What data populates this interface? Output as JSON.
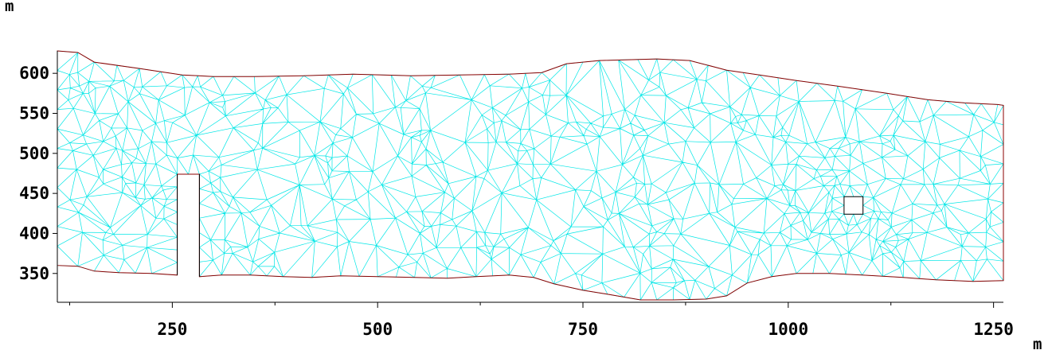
{
  "chart_data": {
    "type": "mesh",
    "x_unit": "m",
    "y_unit": "m",
    "xlim": [
      110,
      1262
    ],
    "ylim": [
      314,
      628
    ],
    "x_ticks": [
      250,
      500,
      750,
      1000,
      1250
    ],
    "x_tick_labels": [
      "250",
      "500",
      "750",
      "1000",
      "1250"
    ],
    "x_minor_ticks": [
      125,
      375,
      625,
      875,
      1125
    ],
    "y_ticks": [
      350,
      400,
      450,
      500,
      550,
      600
    ],
    "y_tick_labels": [
      "350",
      "400",
      "450",
      "500",
      "550",
      "600"
    ],
    "mesh_spacing": 25,
    "outer_boundary": [
      [
        110,
        628
      ],
      [
        135,
        626
      ],
      [
        155,
        614
      ],
      [
        210,
        606
      ],
      [
        262,
        598
      ],
      [
        300,
        596
      ],
      [
        350,
        596
      ],
      [
        410,
        597
      ],
      [
        470,
        599
      ],
      [
        540,
        597
      ],
      [
        600,
        598
      ],
      [
        660,
        599
      ],
      [
        700,
        601
      ],
      [
        730,
        612
      ],
      [
        770,
        616
      ],
      [
        840,
        618
      ],
      [
        880,
        616
      ],
      [
        925,
        604
      ],
      [
        965,
        598
      ],
      [
        1010,
        591
      ],
      [
        1060,
        584
      ],
      [
        1120,
        575
      ],
      [
        1170,
        567
      ],
      [
        1215,
        563
      ],
      [
        1255,
        561
      ],
      [
        1262,
        560
      ],
      [
        1262,
        341
      ],
      [
        1225,
        340
      ],
      [
        1180,
        342
      ],
      [
        1140,
        345
      ],
      [
        1090,
        348
      ],
      [
        1050,
        350
      ],
      [
        1010,
        350
      ],
      [
        980,
        346
      ],
      [
        950,
        338
      ],
      [
        925,
        322
      ],
      [
        900,
        318
      ],
      [
        860,
        317
      ],
      [
        820,
        317
      ],
      [
        780,
        324
      ],
      [
        750,
        329
      ],
      [
        715,
        337
      ],
      [
        690,
        345
      ],
      [
        660,
        348
      ],
      [
        620,
        346
      ],
      [
        585,
        344
      ],
      [
        545,
        345
      ],
      [
        500,
        346
      ],
      [
        455,
        347
      ],
      [
        420,
        345
      ],
      [
        385,
        346
      ],
      [
        345,
        348
      ],
      [
        310,
        348
      ],
      [
        283,
        346
      ],
      [
        283,
        474
      ],
      [
        256,
        474
      ],
      [
        256,
        348
      ],
      [
        225,
        350
      ],
      [
        185,
        351
      ],
      [
        155,
        353
      ],
      [
        135,
        359
      ],
      [
        110,
        360
      ]
    ],
    "holes": [
      [
        [
          1068,
          446
        ],
        [
          1091,
          446
        ],
        [
          1091,
          424
        ],
        [
          1068,
          424
        ]
      ]
    ],
    "refinement_zones": [
      {
        "center": [
          260,
          468
        ],
        "radius": 82,
        "spacing": 14
      },
      {
        "center": [
          1078,
          436
        ],
        "radius": 108,
        "spacing": 12
      }
    ],
    "colors": {
      "mesh": "#00e6e6",
      "boundary": "#8b0000",
      "axis": "#000000",
      "background": "#ffffff"
    }
  }
}
